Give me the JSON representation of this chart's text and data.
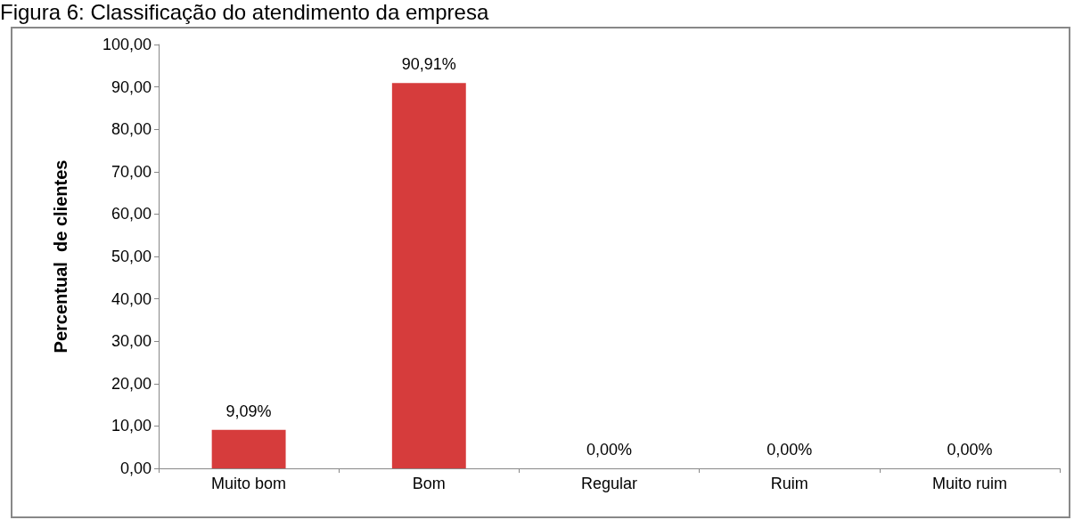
{
  "chart_data": {
    "type": "bar",
    "title": "Figura 6: Classificação do atendimento da empresa",
    "ylabel": "Percentual  de clientes",
    "categories": [
      "Muito bom",
      "Bom",
      "Regular",
      "Ruim",
      "Muito ruim"
    ],
    "values": [
      9.09,
      90.91,
      0,
      0,
      0
    ],
    "color": "#d63c3c",
    "value_labels": [
      "9,09%",
      "90,91%",
      "0,00%",
      "0,00%",
      "0,00%"
    ],
    "ylim": [
      0,
      100
    ],
    "yticks": [
      {
        "value": 0,
        "label": "0,00"
      },
      {
        "value": 10,
        "label": "10,00"
      },
      {
        "value": 20,
        "label": "20,00"
      },
      {
        "value": 30,
        "label": "30,00"
      },
      {
        "value": 40,
        "label": "40,00"
      },
      {
        "value": 50,
        "label": "50,00"
      },
      {
        "value": 60,
        "label": "60,00"
      },
      {
        "value": 70,
        "label": "70,00"
      },
      {
        "value": 80,
        "label": "80,00"
      },
      {
        "value": 90,
        "label": "90,00"
      },
      {
        "value": 100,
        "label": "100,00"
      }
    ],
    "grid": false
  }
}
